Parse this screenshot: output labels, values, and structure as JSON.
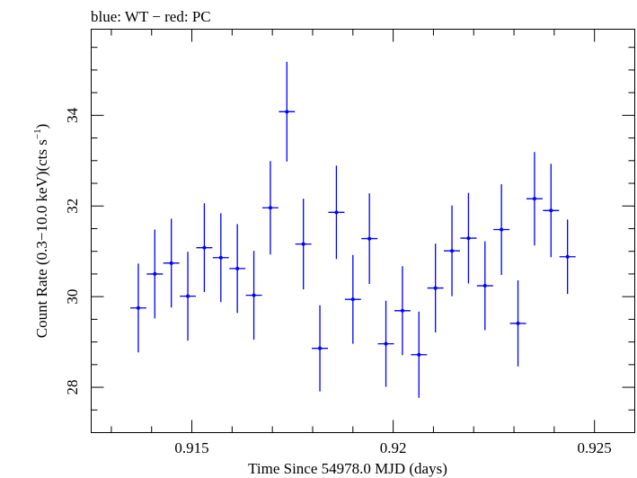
{
  "chart_data": {
    "type": "scatter",
    "title": "blue: WT − red: PC",
    "xlabel": "Time Since 54978.0 MJD (days)",
    "ylabel_main": "Count Rate (0.3−10.0 keV)(cts s",
    "ylabel_sup": "−1",
    "ylabel_close": ")",
    "xlim": [
      0.9125,
      0.926
    ],
    "ylim": [
      27.0,
      35.9
    ],
    "xticks": [
      0.915,
      0.92,
      0.925
    ],
    "xtick_labels": [
      "0.915",
      "0.92",
      "0.925"
    ],
    "yticks": [
      28,
      30,
      32,
      34
    ],
    "ytick_labels": [
      "28",
      "30",
      "32",
      "34"
    ],
    "series": [
      {
        "color": "#0000ff",
        "points": [
          {
            "x": 0.91367,
            "xerr": 0.0002,
            "y": 29.75,
            "yerr": 0.98
          },
          {
            "x": 0.91408,
            "xerr": 0.0002,
            "y": 30.5,
            "yerr": 0.98
          },
          {
            "x": 0.91449,
            "xerr": 0.0002,
            "y": 30.74,
            "yerr": 0.98
          },
          {
            "x": 0.9149,
            "xerr": 0.0002,
            "y": 30.01,
            "yerr": 0.98
          },
          {
            "x": 0.91531,
            "xerr": 0.0002,
            "y": 31.08,
            "yerr": 0.98
          },
          {
            "x": 0.91572,
            "xerr": 0.0002,
            "y": 30.86,
            "yerr": 0.98
          },
          {
            "x": 0.91613,
            "xerr": 0.0002,
            "y": 30.62,
            "yerr": 0.98
          },
          {
            "x": 0.91654,
            "xerr": 0.0002,
            "y": 30.03,
            "yerr": 0.98
          },
          {
            "x": 0.91695,
            "xerr": 0.0002,
            "y": 31.96,
            "yerr": 1.03
          },
          {
            "x": 0.91736,
            "xerr": 0.0002,
            "y": 34.08,
            "yerr": 1.1
          },
          {
            "x": 0.91777,
            "xerr": 0.0002,
            "y": 31.16,
            "yerr": 1.0
          },
          {
            "x": 0.91818,
            "xerr": 0.0002,
            "y": 28.86,
            "yerr": 0.95
          },
          {
            "x": 0.91859,
            "xerr": 0.0002,
            "y": 31.86,
            "yerr": 1.03
          },
          {
            "x": 0.919,
            "xerr": 0.0002,
            "y": 29.94,
            "yerr": 0.98
          },
          {
            "x": 0.91941,
            "xerr": 0.0002,
            "y": 31.28,
            "yerr": 1.0
          },
          {
            "x": 0.91982,
            "xerr": 0.0002,
            "y": 28.96,
            "yerr": 0.95
          },
          {
            "x": 0.92023,
            "xerr": 0.0002,
            "y": 29.69,
            "yerr": 0.98
          },
          {
            "x": 0.92064,
            "xerr": 0.0002,
            "y": 28.72,
            "yerr": 0.95
          },
          {
            "x": 0.92105,
            "xerr": 0.0002,
            "y": 30.19,
            "yerr": 0.98
          },
          {
            "x": 0.92146,
            "xerr": 0.0002,
            "y": 31.01,
            "yerr": 1.0
          },
          {
            "x": 0.92187,
            "xerr": 0.0002,
            "y": 31.29,
            "yerr": 1.0
          },
          {
            "x": 0.92228,
            "xerr": 0.0002,
            "y": 30.24,
            "yerr": 0.98
          },
          {
            "x": 0.92269,
            "xerr": 0.0002,
            "y": 31.48,
            "yerr": 1.0
          },
          {
            "x": 0.9231,
            "xerr": 0.0002,
            "y": 29.41,
            "yerr": 0.95
          },
          {
            "x": 0.92351,
            "xerr": 0.0002,
            "y": 32.16,
            "yerr": 1.03
          },
          {
            "x": 0.92392,
            "xerr": 0.0002,
            "y": 31.9,
            "yerr": 1.03
          },
          {
            "x": 0.92433,
            "xerr": 0.0002,
            "y": 30.88,
            "yerr": 0.82
          }
        ]
      }
    ]
  }
}
